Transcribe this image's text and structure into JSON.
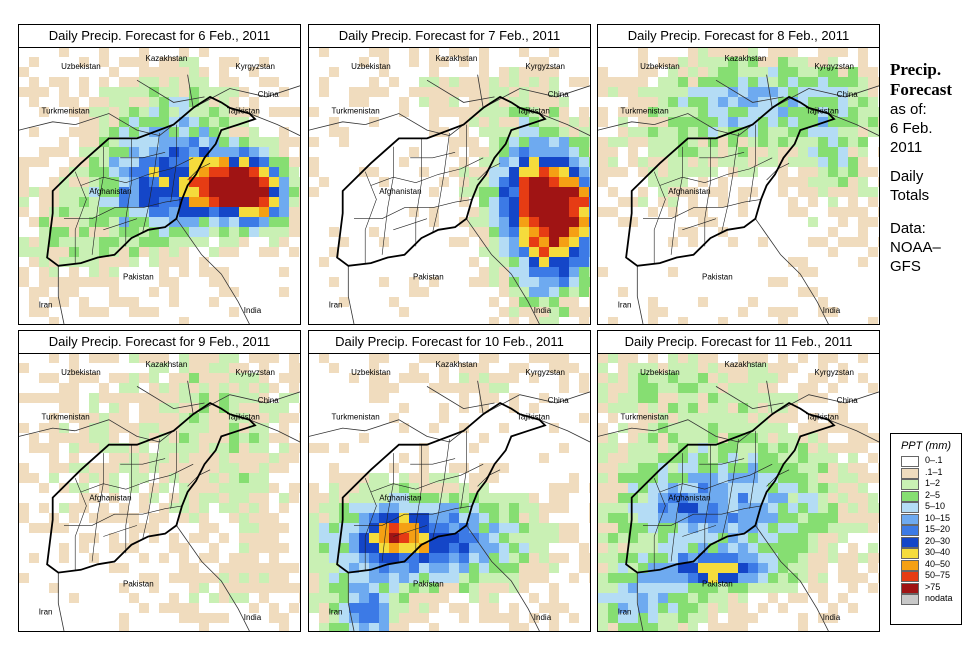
{
  "panels": [
    {
      "title": "Daily Precip. Forecast for  6 Feb., 2011"
    },
    {
      "title": "Daily Precip. Forecast for  7 Feb., 2011"
    },
    {
      "title": "Daily Precip. Forecast for  8 Feb., 2011"
    },
    {
      "title": "Daily Precip. Forecast for  9 Feb., 2011"
    },
    {
      "title": "Daily Precip. Forecast for  10 Feb., 2011"
    },
    {
      "title": "Daily Precip. Forecast for  11 Feb., 2011"
    }
  ],
  "map_labels": {
    "uzbekistan": "Uzbekistan",
    "kazakhstan": "Kazakhstan",
    "kyrgyzstan": "Kyrgyzstan",
    "china": "China",
    "tajikistan": "Tajikistan",
    "turkmenistan": "Turkmenistan",
    "afghanistan": "Afghanistan",
    "pakistan": "Pakistan",
    "iran": "Iran",
    "india": "India"
  },
  "sidebar": {
    "title_line1": "Precip.",
    "title_line2": "Forecast",
    "asof": "as of:",
    "date_line1": "6 Feb.",
    "date_line2": "2011",
    "totals_line1": "Daily",
    "totals_line2": "Totals",
    "data_line1": "Data:",
    "data_line2": "NOAA–",
    "data_line3": "GFS"
  },
  "legend": {
    "title": "PPT (mm)",
    "entries": [
      {
        "label": "0–.1",
        "color": "#ffffff"
      },
      {
        "label": ".1–1",
        "color": "#f0dcbe"
      },
      {
        "label": "1–2",
        "color": "#c9f0b4"
      },
      {
        "label": "2–5",
        "color": "#86de72"
      },
      {
        "label": "5–10",
        "color": "#b4dcf5"
      },
      {
        "label": "10–15",
        "color": "#6eaaf0"
      },
      {
        "label": "15–20",
        "color": "#3c7ae6"
      },
      {
        "label": "20–30",
        "color": "#1446c8"
      },
      {
        "label": "30–40",
        "color": "#f5dc3c"
      },
      {
        "label": "40–50",
        "color": "#f5a014"
      },
      {
        "label": "50–75",
        "color": "#e63c14"
      },
      {
        "label": ">75",
        "color": "#a01414"
      },
      {
        "label": "nodata",
        "color": "#c8c8c8"
      }
    ]
  }
}
